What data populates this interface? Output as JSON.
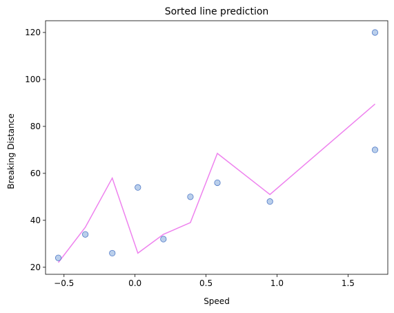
{
  "chart_data": {
    "type": "scatter",
    "title": "Sorted line prediction",
    "xlabel": "Speed",
    "ylabel": "Breaking Distance",
    "xlim": [
      -0.63,
      1.78
    ],
    "ylim": [
      17,
      125
    ],
    "xticks": [
      -0.5,
      0.0,
      0.5,
      1.0,
      1.5
    ],
    "xtick_labels": [
      "−0.5",
      "0.0",
      "0.5",
      "1.0",
      "1.5"
    ],
    "yticks": [
      20,
      40,
      60,
      80,
      100,
      120
    ],
    "ytick_labels": [
      "20",
      "40",
      "60",
      "80",
      "100",
      "120"
    ],
    "grid": false,
    "colors": {
      "points_fill": "#aec7e8",
      "points_edge": "#4f79c7",
      "line": "#ee82ee"
    },
    "scatter": {
      "x": [
        -0.54,
        -0.35,
        -0.16,
        0.02,
        0.2,
        0.39,
        0.58,
        0.95,
        1.69,
        1.69
      ],
      "y": [
        24,
        34,
        26,
        54,
        32,
        50,
        56,
        48,
        70,
        120
      ]
    },
    "line": {
      "x": [
        -0.54,
        -0.35,
        -0.16,
        0.02,
        0.2,
        0.39,
        0.58,
        0.95,
        1.69
      ],
      "y": [
        22,
        37,
        58,
        26,
        34,
        39,
        68.5,
        51,
        89.5
      ]
    }
  }
}
